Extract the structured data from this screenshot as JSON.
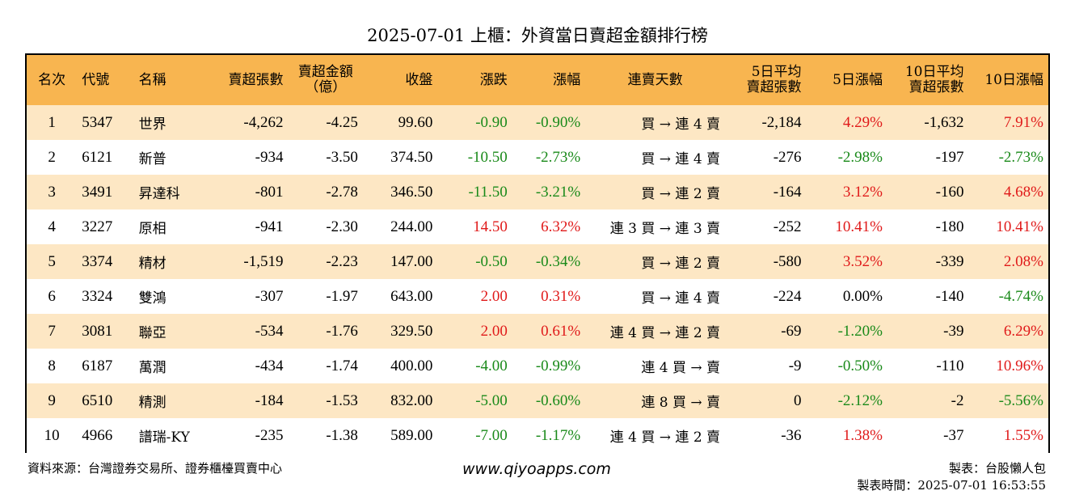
{
  "title": "2025-07-01 上櫃：外資當日賣超金額排行榜",
  "headers": {
    "rank": "名次",
    "code": "代號",
    "name": "名稱",
    "net_shares_1": "賣超張數",
    "net_amount_1": "賣超金額",
    "net_amount_2": "（億）",
    "close": "收盤",
    "change": "漲跌",
    "pct": "漲幅",
    "streak": "連賣天數",
    "avg5_1": "5日平均",
    "avg5_2": "賣超張數",
    "pct5": "5日漲幅",
    "avg10_1": "10日平均",
    "avg10_2": "賣超張數",
    "pct10": "10日漲幅"
  },
  "rows": [
    {
      "rank": "1",
      "code": "5347",
      "name": "世界",
      "shares": "-4,262",
      "amount": "-4.25",
      "close": "99.60",
      "change": "-0.90",
      "pct": "-0.90%",
      "streak": "買 → 連 4 賣",
      "avg5": "-2,184",
      "pct5": "4.29%",
      "avg10": "-1,632",
      "pct10": "7.91%"
    },
    {
      "rank": "2",
      "code": "6121",
      "name": "新普",
      "shares": "-934",
      "amount": "-3.50",
      "close": "374.50",
      "change": "-10.50",
      "pct": "-2.73%",
      "streak": "買 → 連 4 賣",
      "avg5": "-276",
      "pct5": "-2.98%",
      "avg10": "-197",
      "pct10": "-2.73%"
    },
    {
      "rank": "3",
      "code": "3491",
      "name": "昇達科",
      "shares": "-801",
      "amount": "-2.78",
      "close": "346.50",
      "change": "-11.50",
      "pct": "-3.21%",
      "streak": "買 → 連 2 賣",
      "avg5": "-164",
      "pct5": "3.12%",
      "avg10": "-160",
      "pct10": "4.68%"
    },
    {
      "rank": "4",
      "code": "3227",
      "name": "原相",
      "shares": "-941",
      "amount": "-2.30",
      "close": "244.00",
      "change": "14.50",
      "pct": "6.32%",
      "streak": "連 3 買 → 連 3 賣",
      "avg5": "-252",
      "pct5": "10.41%",
      "avg10": "-180",
      "pct10": "10.41%"
    },
    {
      "rank": "5",
      "code": "3374",
      "name": "精材",
      "shares": "-1,519",
      "amount": "-2.23",
      "close": "147.00",
      "change": "-0.50",
      "pct": "-0.34%",
      "streak": "買 → 連 2 賣",
      "avg5": "-580",
      "pct5": "3.52%",
      "avg10": "-339",
      "pct10": "2.08%"
    },
    {
      "rank": "6",
      "code": "3324",
      "name": "雙鴻",
      "shares": "-307",
      "amount": "-1.97",
      "close": "643.00",
      "change": "2.00",
      "pct": "0.31%",
      "streak": "買 → 連 4 賣",
      "avg5": "-224",
      "pct5": "0.00%",
      "avg10": "-140",
      "pct10": "-4.74%"
    },
    {
      "rank": "7",
      "code": "3081",
      "name": "聯亞",
      "shares": "-534",
      "amount": "-1.76",
      "close": "329.50",
      "change": "2.00",
      "pct": "0.61%",
      "streak": "連 4 買 → 連 2 賣",
      "avg5": "-69",
      "pct5": "-1.20%",
      "avg10": "-39",
      "pct10": "6.29%"
    },
    {
      "rank": "8",
      "code": "6187",
      "name": "萬潤",
      "shares": "-434",
      "amount": "-1.74",
      "close": "400.00",
      "change": "-4.00",
      "pct": "-0.99%",
      "streak": "連 4 買 → 賣",
      "avg5": "-9",
      "pct5": "-0.50%",
      "avg10": "-110",
      "pct10": "10.96%"
    },
    {
      "rank": "9",
      "code": "6510",
      "name": "精測",
      "shares": "-184",
      "amount": "-1.53",
      "close": "832.00",
      "change": "-5.00",
      "pct": "-0.60%",
      "streak": "連 8 買 → 賣",
      "avg5": "0",
      "pct5": "-2.12%",
      "avg10": "-2",
      "pct10": "-5.56%"
    },
    {
      "rank": "10",
      "code": "4966",
      "name": "譜瑞-KY",
      "shares": "-235",
      "amount": "-1.38",
      "close": "589.00",
      "change": "-7.00",
      "pct": "-1.17%",
      "streak": "連 4 買 → 連 2 賣",
      "avg5": "-36",
      "pct5": "1.38%",
      "avg10": "-37",
      "pct10": "1.55%"
    }
  ],
  "colors": {
    "up": "#e01a1a",
    "down": "#1a8a1a",
    "header": "#f8b550",
    "stripe": "#fde7c4"
  },
  "footer": {
    "source": "資料來源：台灣證券交易所、證券櫃檯買賣中心",
    "website": "www.qiyoapps.com",
    "author": "製表：台股懶人包",
    "timestamp": "製表時間：2025-07-01 16:53:55"
  }
}
